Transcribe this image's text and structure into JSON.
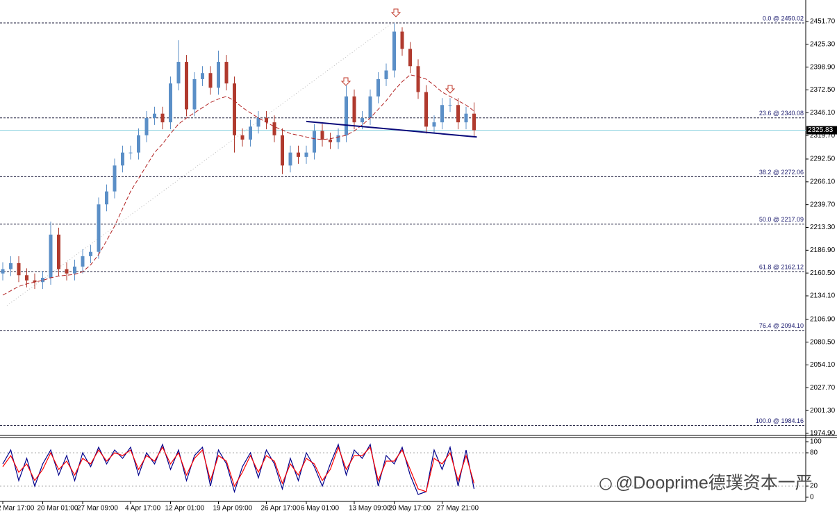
{
  "chart_data": [
    {
      "type": "candlestick",
      "categories": [
        "2 Mar 17:00",
        null,
        null,
        null,
        null,
        "20 Mar 01:00",
        null,
        null,
        null,
        null,
        "27 Mar 09:00",
        null,
        null,
        null,
        null,
        null,
        "4 Apr 17:00",
        null,
        null,
        null,
        null,
        "12 Apr 01:00",
        null,
        null,
        null,
        null,
        null,
        "19 Apr 09:00",
        null,
        null,
        null,
        null,
        null,
        "26 Apr 17:00",
        null,
        null,
        null,
        null,
        "6 May 01:00",
        null,
        null,
        null,
        null,
        null,
        "13 May 09:00",
        null,
        null,
        null,
        null,
        "20 May 17:00",
        null,
        null,
        null,
        null,
        null,
        "27 May 21:00",
        null,
        null,
        null,
        null
      ],
      "open": [
        2160,
        2165,
        2172,
        2158,
        2152,
        2150,
        2155,
        2205,
        2165,
        2160,
        2168,
        2180,
        2185,
        2240,
        2255,
        2285,
        2300,
        2300,
        2320,
        2340,
        2345,
        2335,
        2380,
        2405,
        2350,
        2385,
        2392,
        2375,
        2405,
        2380,
        2320,
        2315,
        2330,
        2340,
        2335,
        2320,
        2285,
        2300,
        2295,
        2300,
        2325,
        2315,
        2312,
        2320,
        2365,
        2335,
        2340,
        2365,
        2385,
        2395,
        2440,
        2420,
        2400,
        2370,
        2330,
        2335,
        2355,
        2355,
        2335,
        2345
      ],
      "high": [
        2173,
        2180,
        2180,
        2166,
        2160,
        2163,
        2220,
        2213,
        2173,
        2176,
        2188,
        2193,
        2248,
        2263,
        2293,
        2308,
        2308,
        2328,
        2348,
        2353,
        2353,
        2388,
        2430,
        2413,
        2393,
        2400,
        2400,
        2418,
        2413,
        2388,
        2328,
        2338,
        2348,
        2348,
        2343,
        2328,
        2308,
        2308,
        2308,
        2333,
        2333,
        2323,
        2328,
        2378,
        2373,
        2348,
        2373,
        2393,
        2403,
        2450.02,
        2445,
        2428,
        2408,
        2378,
        2343,
        2363,
        2363,
        2363,
        2353,
        2358
      ],
      "low": [
        2152,
        2157,
        2150,
        2144,
        2142,
        2142,
        2147,
        2157,
        2152,
        2152,
        2160,
        2172,
        2177,
        2232,
        2247,
        2277,
        2292,
        2292,
        2312,
        2332,
        2327,
        2327,
        2372,
        2342,
        2342,
        2377,
        2367,
        2367,
        2372,
        2300,
        2307,
        2307,
        2322,
        2327,
        2312,
        2275,
        2277,
        2287,
        2287,
        2292,
        2307,
        2304,
        2304,
        2312,
        2327,
        2327,
        2332,
        2357,
        2377,
        2387,
        2412,
        2392,
        2362,
        2322,
        2322,
        2327,
        2347,
        2327,
        2327,
        2318
      ],
      "close": [
        2165,
        2172,
        2158,
        2152,
        2150,
        2155,
        2205,
        2165,
        2160,
        2168,
        2180,
        2185,
        2240,
        2255,
        2285,
        2300,
        2300,
        2320,
        2340,
        2345,
        2335,
        2380,
        2405,
        2350,
        2385,
        2392,
        2375,
        2405,
        2380,
        2320,
        2315,
        2330,
        2340,
        2335,
        2320,
        2285,
        2300,
        2295,
        2300,
        2325,
        2315,
        2312,
        2320,
        2365,
        2335,
        2340,
        2365,
        2385,
        2395,
        2440,
        2420,
        2400,
        2370,
        2330,
        2335,
        2355,
        2355,
        2335,
        2345,
        2325.83
      ],
      "up_color": "#5b8fc7",
      "down_color": "#b03a2e",
      "moving_average": {
        "color": "#b22222",
        "values": [
          2135,
          2140,
          2145,
          2148,
          2150,
          2152,
          2155,
          2157,
          2158,
          2159,
          2162,
          2170,
          2182,
          2198,
          2215,
          2235,
          2255,
          2270,
          2285,
          2300,
          2310,
          2322,
          2333,
          2340,
          2346,
          2352,
          2358,
          2362,
          2365,
          2360,
          2352,
          2346,
          2340,
          2335,
          2330,
          2326,
          2322,
          2320,
          2318,
          2316,
          2315,
          2316,
          2318,
          2320,
          2325,
          2332,
          2340,
          2350,
          2360,
          2372,
          2382,
          2390,
          2388,
          2385,
          2378,
          2370,
          2365,
          2360,
          2355,
          2348
        ]
      },
      "neckline": {
        "color": "#0a0a7a",
        "values": [
          2336,
          2318
        ]
      },
      "ylim": [
        1972.5,
        2476.6
      ],
      "yticks": [
        {
          "value": 2451.7,
          "label": "2451.70"
        },
        {
          "value": 2425.3,
          "label": "2425.30"
        },
        {
          "value": 2398.9,
          "label": "2398.90"
        },
        {
          "value": 2372.5,
          "label": "2372.50"
        },
        {
          "value": 2346.1,
          "label": "2346.10"
        },
        {
          "value": 2319.7,
          "label": "2319.70"
        },
        {
          "value": 2292.5,
          "label": "2292.50"
        },
        {
          "value": 2266.1,
          "label": "2266.10"
        },
        {
          "value": 2239.7,
          "label": "2239.70"
        },
        {
          "value": 2213.3,
          "label": "2213.30"
        },
        {
          "value": 2186.9,
          "label": "2186.90"
        },
        {
          "value": 2160.5,
          "label": "2160.50"
        },
        {
          "value": 2134.1,
          "label": "2134.10"
        },
        {
          "value": 2106.9,
          "label": "2106.90"
        },
        {
          "value": 2080.5,
          "label": "2080.50"
        },
        {
          "value": 2054.1,
          "label": "2054.10"
        },
        {
          "value": 2027.7,
          "label": "2027.70"
        },
        {
          "value": 2001.3,
          "label": "2001.30"
        },
        {
          "value": 1974.9,
          "label": "1974.90"
        }
      ],
      "fib_levels": [
        {
          "value": 2450.02,
          "label": "0.0 @ 2450.02"
        },
        {
          "value": 2340.08,
          "label": "23.6 @ 2340.08"
        },
        {
          "value": 2272.06,
          "label": "38.2 @ 2272.06"
        },
        {
          "value": 2217.09,
          "label": "50.0 @ 2217.09"
        },
        {
          "value": 2162.12,
          "label": "61.8 @ 2162.12"
        },
        {
          "value": 2094.1,
          "label": "76.4 @ 2094.10"
        },
        {
          "value": 1984.16,
          "label": "100.0 @ 1984.16"
        }
      ],
      "current_price": 2325.83
    },
    {
      "type": "stochastic",
      "series": [
        {
          "color": "#00008b",
          "values": [
            60,
            85,
            30,
            70,
            20,
            60,
            85,
            40,
            75,
            30,
            80,
            55,
            90,
            60,
            85,
            70,
            90,
            40,
            80,
            60,
            95,
            50,
            85,
            30,
            75,
            90,
            20,
            85,
            60,
            10,
            55,
            80,
            35,
            85,
            60,
            15,
            70,
            30,
            80,
            55,
            20,
            60,
            95,
            40,
            85,
            70,
            95,
            20,
            75,
            60,
            90,
            40,
            5,
            10,
            85,
            50,
            90,
            20,
            85,
            15
          ]
        },
        {
          "color": "#ff0000",
          "values": [
            55,
            75,
            45,
            60,
            30,
            50,
            80,
            50,
            65,
            40,
            70,
            60,
            85,
            65,
            80,
            75,
            85,
            50,
            75,
            65,
            90,
            60,
            80,
            40,
            70,
            85,
            30,
            75,
            65,
            20,
            45,
            75,
            45,
            75,
            65,
            25,
            60,
            40,
            70,
            60,
            30,
            50,
            90,
            50,
            75,
            75,
            90,
            30,
            65,
            65,
            85,
            50,
            15,
            10,
            70,
            60,
            80,
            30,
            75,
            25
          ]
        }
      ],
      "ylim": [
        -7.5,
        107.5
      ],
      "yticks": [
        100,
        80,
        20,
        0
      ]
    }
  ],
  "watermark": "@Dooprime德璞资本一严"
}
